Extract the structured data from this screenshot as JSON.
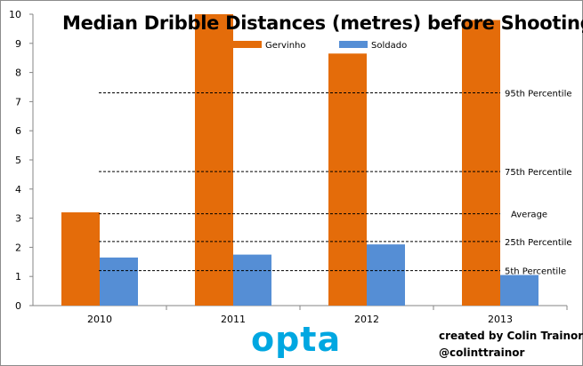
{
  "chart_data": {
    "type": "bar",
    "title": "Median Dribble Distances (metres) before Shooting",
    "categories": [
      "2010",
      "2011",
      "2012",
      "2013"
    ],
    "series": [
      {
        "name": "Gervinho",
        "color": "#e46c0a",
        "values": [
          3.2,
          10.0,
          8.65,
          9.8
        ]
      },
      {
        "name": "Soldado",
        "color": "#558ed5",
        "values": [
          1.65,
          1.75,
          2.1,
          1.05
        ]
      }
    ],
    "ylim": [
      0,
      10
    ],
    "yticks": [
      "0",
      "1",
      "2",
      "3",
      "4",
      "5",
      "6",
      "7",
      "8",
      "9",
      "10"
    ],
    "reference_lines": [
      {
        "label": "95th Percentile",
        "value": 7.3
      },
      {
        "label": "75th Percentile",
        "value": 4.6
      },
      {
        "label": "Average",
        "value": 3.15
      },
      {
        "label": "25th Percentile",
        "value": 2.2
      },
      {
        "label": "5th Percentile",
        "value": 1.2
      }
    ],
    "legend_position": "top-center",
    "grid": false
  },
  "credit": {
    "line1": "created by Colin Trainor",
    "line2": "@colinttrainor"
  },
  "logo": {
    "text": "opta"
  }
}
